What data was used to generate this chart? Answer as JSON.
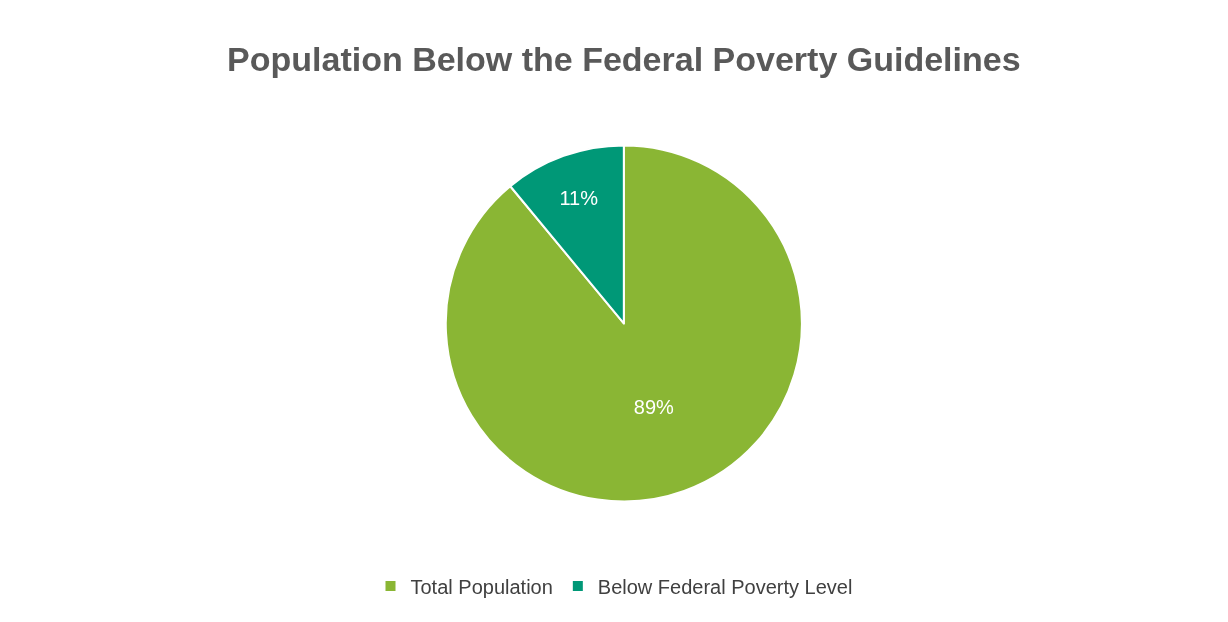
{
  "chart_data": {
    "type": "pie",
    "title": "Population Below the Federal Poverty Guidelines",
    "categories": [
      "Total Population",
      "Below Federal Poverty Level"
    ],
    "values": [
      89,
      11
    ],
    "colors": [
      "#8ab634",
      "#009877"
    ],
    "value_labels": [
      "89%",
      "11%"
    ],
    "legend": "bottom"
  }
}
